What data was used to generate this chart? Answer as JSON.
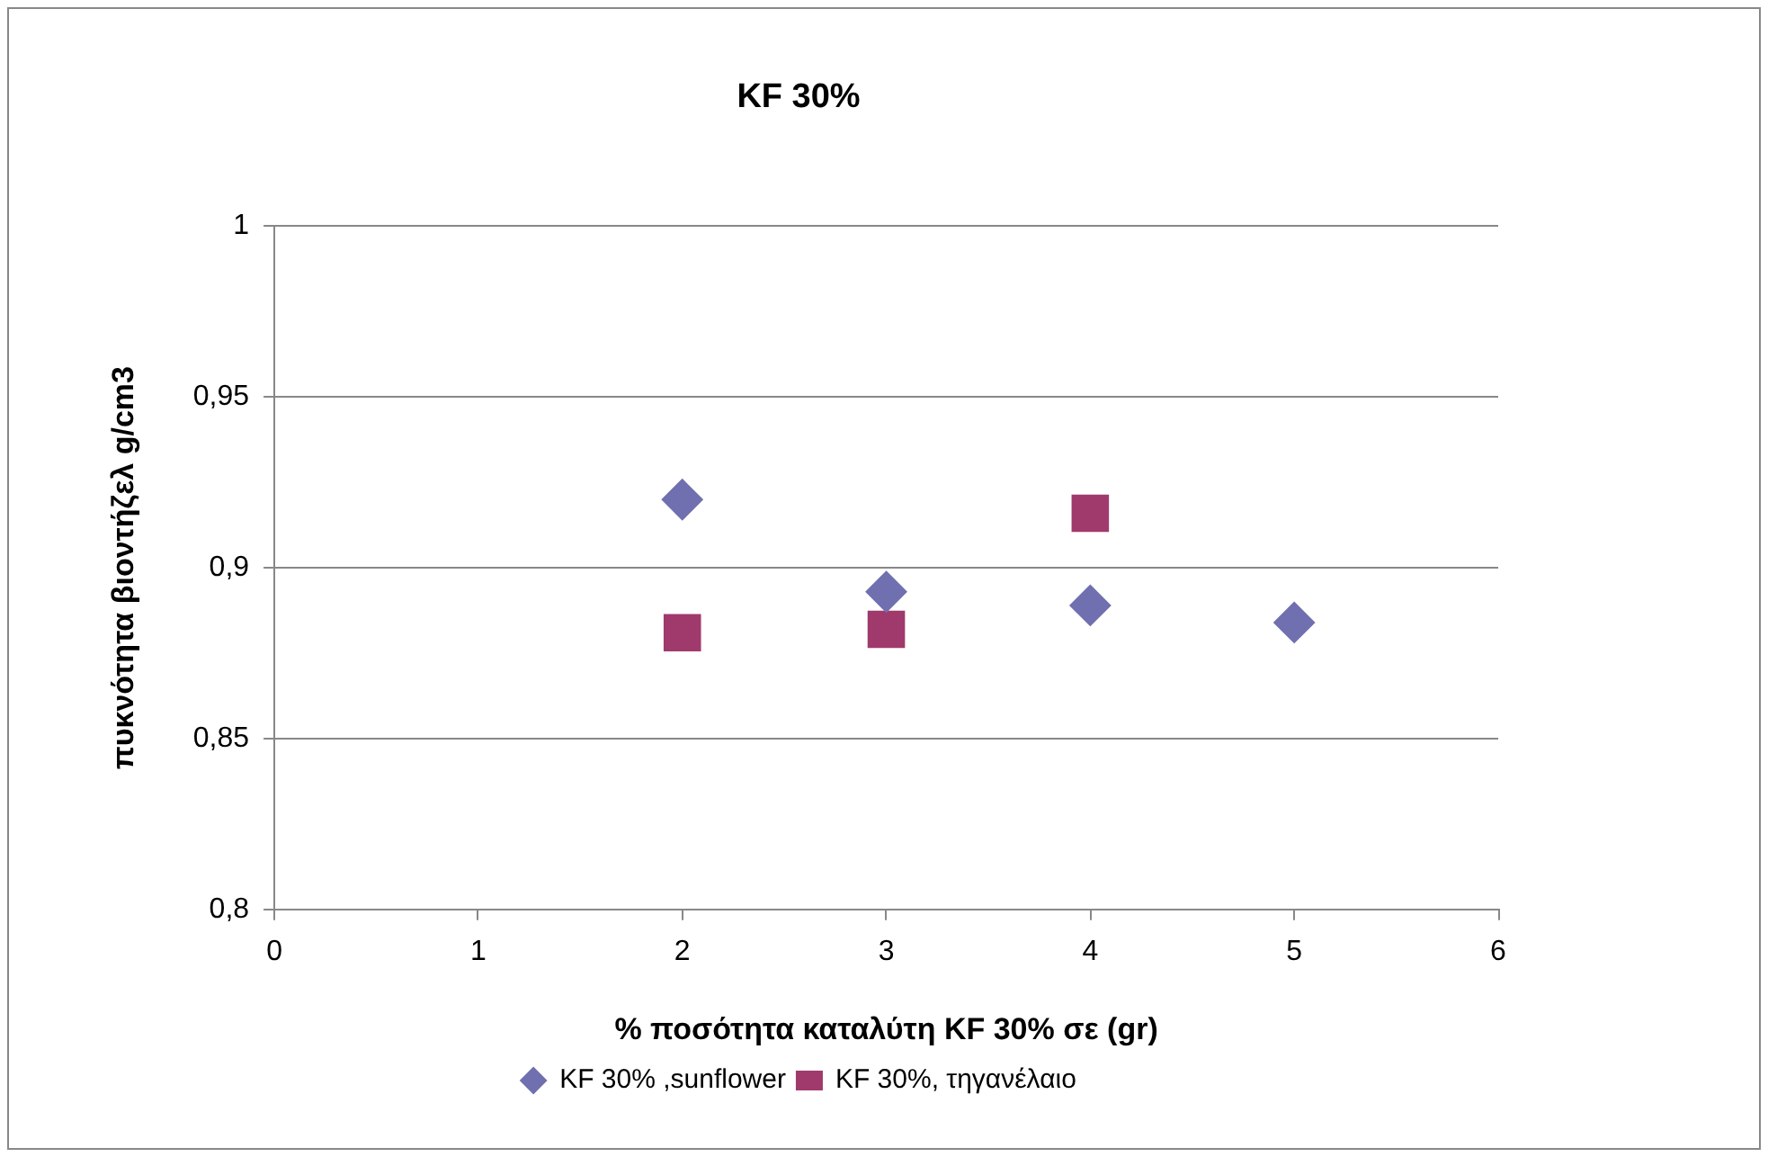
{
  "chart_data": {
    "type": "scatter",
    "title": "KF 30%",
    "xlabel": "% ποσότητα καταλύτη KF 30% σε (gr)",
    "ylabel": "πυκνότητα βιοντήζελ g/cm3",
    "series": [
      {
        "name": "KF 30% ,sunflower",
        "color": "#7070b0",
        "marker": "diamond",
        "x": [
          2,
          3,
          4,
          5
        ],
        "values": [
          0.92,
          0.893,
          0.889,
          0.884
        ]
      },
      {
        "name": "KF 30%, τηγανέλαιο",
        "color": "#a03a6c",
        "marker": "square",
        "x": [
          2,
          3,
          4
        ],
        "values": [
          0.881,
          0.882,
          0.916
        ]
      }
    ],
    "xlim": [
      0,
      6
    ],
    "xticks": [
      0,
      1,
      2,
      3,
      4,
      5,
      6
    ],
    "ylim": [
      0.8,
      1
    ],
    "yticks": [
      {
        "value": 0.8,
        "label": "0,8"
      },
      {
        "value": 0.85,
        "label": "0,85"
      },
      {
        "value": 0.9,
        "label": "0,9"
      },
      {
        "value": 0.95,
        "label": "0,95"
      },
      {
        "value": 1,
        "label": "1"
      }
    ],
    "grid": "y",
    "legend": "bottom"
  }
}
